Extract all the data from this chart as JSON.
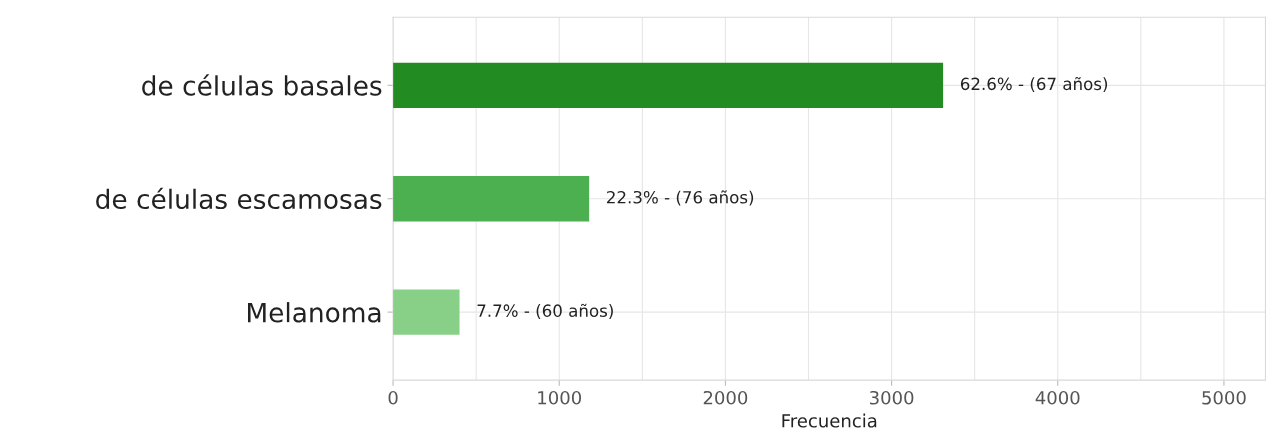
{
  "chart_data": {
    "type": "bar",
    "orientation": "horizontal",
    "xlabel": "Frecuencia",
    "categories": [
      "de células basales",
      "de células escamosas",
      "Melanoma"
    ],
    "values": [
      3310,
      1180,
      400
    ],
    "colors": [
      "#228b22",
      "#4caf50",
      "#88cf88"
    ],
    "annotations": [
      {
        "text": "62.6% - (67 años)",
        "x": 3310,
        "y": "de células basales"
      },
      {
        "text": "22.3% - (76 años)",
        "x": 1180,
        "y": "de células escamosas"
      },
      {
        "text": "7.7% - (60 años)",
        "x": 400,
        "y": "Melanoma"
      }
    ],
    "xlim": [
      0,
      5250
    ],
    "xticks": [
      0,
      1000,
      2000,
      3000,
      4000,
      5000
    ],
    "grid": true
  }
}
